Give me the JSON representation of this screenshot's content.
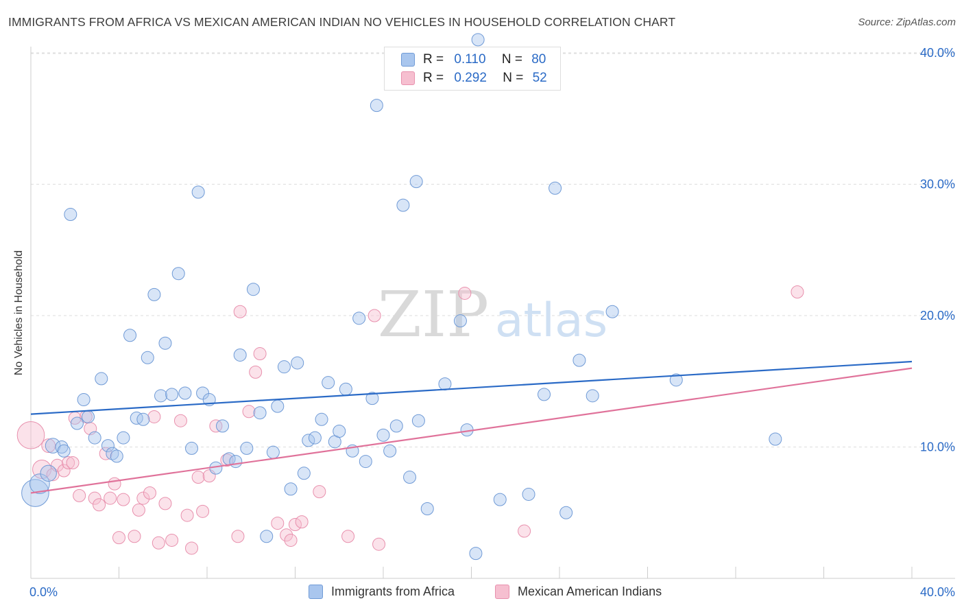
{
  "title": "IMMIGRANTS FROM AFRICA VS MEXICAN AMERICAN INDIAN NO VEHICLES IN HOUSEHOLD CORRELATION CHART",
  "source": "Source: ZipAtlas.com",
  "watermark": {
    "zip": "ZIP",
    "atlas": "atlas"
  },
  "colors": {
    "blue_fill": "#a9c6ee",
    "blue_stroke": "#6f9ad6",
    "blue_line": "#2a6ac6",
    "pink_fill": "#f6bfd0",
    "pink_stroke": "#e890ad",
    "pink_line": "#e0729a",
    "axis_label": "#2a6ac6",
    "grid": "#dddddd"
  },
  "legend_top": [
    {
      "r_label": "R =",
      "r_value": "0.110",
      "n_label": "N =",
      "n_value": "80",
      "color": "blue"
    },
    {
      "r_label": "R =",
      "r_value": "0.292",
      "n_label": "N =",
      "n_value": "52",
      "color": "pink"
    }
  ],
  "legend_bottom": [
    "Immigrants from Africa",
    "Mexican American Indians"
  ],
  "chart_data": {
    "type": "scatter",
    "xlabel": "",
    "ylabel": "No Vehicles in Household",
    "xlim": [
      0,
      40
    ],
    "ylim": [
      0,
      40
    ],
    "x_tick_labels": [
      "0.0%",
      "40.0%"
    ],
    "y_tick_labels": [
      "10.0%",
      "20.0%",
      "30.0%",
      "40.0%"
    ],
    "y_ticks": [
      10,
      20,
      30,
      40
    ],
    "x_minor_ticks": [
      0,
      4,
      8,
      12,
      16,
      20,
      24,
      28,
      32,
      36,
      40
    ],
    "grid": true,
    "series": [
      {
        "name": "Immigrants from Africa",
        "color": "blue",
        "trend": {
          "x0": 0,
          "y0": 12.5,
          "x1": 40,
          "y1": 16.5
        },
        "points": [
          [
            0.2,
            6.5,
            2.2
          ],
          [
            0.4,
            7.2,
            1.6
          ],
          [
            0.8,
            8.0,
            1.3
          ],
          [
            1.0,
            10.1,
            1.2
          ],
          [
            1.4,
            10.0,
            1.0
          ],
          [
            1.5,
            9.7,
            1.0
          ],
          [
            1.8,
            27.7,
            1.0
          ],
          [
            2.1,
            11.8,
            1.0
          ],
          [
            2.4,
            13.6,
            1.0
          ],
          [
            2.6,
            12.3,
            1.0
          ],
          [
            2.9,
            10.7,
            1.0
          ],
          [
            3.2,
            15.2,
            1.0
          ],
          [
            3.5,
            10.1,
            1.0
          ],
          [
            3.7,
            9.5,
            1.0
          ],
          [
            3.9,
            9.3,
            1.0
          ],
          [
            4.2,
            10.7,
            1.0
          ],
          [
            4.5,
            18.5,
            1.0
          ],
          [
            4.8,
            12.2,
            1.0
          ],
          [
            5.1,
            12.1,
            1.0
          ],
          [
            5.3,
            16.8,
            1.0
          ],
          [
            5.6,
            21.6,
            1.0
          ],
          [
            5.9,
            13.9,
            1.0
          ],
          [
            6.1,
            17.9,
            1.0
          ],
          [
            6.4,
            14.0,
            1.0
          ],
          [
            6.7,
            23.2,
            1.0
          ],
          [
            7.0,
            14.1,
            1.0
          ],
          [
            7.3,
            9.9,
            1.0
          ],
          [
            7.6,
            29.4,
            1.0
          ],
          [
            7.8,
            14.1,
            1.0
          ],
          [
            8.1,
            13.6,
            1.0
          ],
          [
            8.4,
            8.4,
            1.0
          ],
          [
            8.7,
            11.6,
            1.0
          ],
          [
            9.0,
            9.1,
            1.0
          ],
          [
            9.3,
            8.9,
            1.0
          ],
          [
            9.5,
            17.0,
            1.0
          ],
          [
            9.8,
            9.9,
            1.0
          ],
          [
            10.1,
            22.0,
            1.0
          ],
          [
            10.4,
            12.6,
            1.0
          ],
          [
            10.7,
            3.2,
            1.0
          ],
          [
            11.0,
            9.6,
            1.0
          ],
          [
            11.2,
            13.1,
            1.0
          ],
          [
            11.5,
            16.1,
            1.0
          ],
          [
            11.8,
            6.8,
            1.0
          ],
          [
            12.1,
            16.4,
            1.0
          ],
          [
            12.4,
            8.0,
            1.0
          ],
          [
            12.6,
            10.5,
            1.0
          ],
          [
            12.9,
            10.7,
            1.0
          ],
          [
            13.2,
            12.1,
            1.0
          ],
          [
            13.5,
            14.9,
            1.0
          ],
          [
            13.8,
            10.4,
            1.0
          ],
          [
            14.0,
            11.2,
            1.0
          ],
          [
            14.3,
            14.4,
            1.0
          ],
          [
            14.6,
            9.7,
            1.0
          ],
          [
            14.9,
            19.8,
            1.0
          ],
          [
            15.2,
            8.9,
            1.0
          ],
          [
            15.5,
            13.7,
            1.0
          ],
          [
            15.7,
            36.0,
            1.0
          ],
          [
            16.0,
            10.9,
            1.0
          ],
          [
            16.3,
            9.7,
            1.0
          ],
          [
            16.6,
            11.6,
            1.0
          ],
          [
            16.9,
            28.4,
            1.0
          ],
          [
            17.2,
            7.7,
            1.0
          ],
          [
            17.5,
            30.2,
            1.0
          ],
          [
            17.6,
            12.0,
            1.0
          ],
          [
            18.0,
            5.3,
            1.0
          ],
          [
            18.8,
            14.8,
            1.0
          ],
          [
            19.5,
            19.6,
            1.0
          ],
          [
            19.8,
            11.3,
            1.0
          ],
          [
            20.2,
            1.9,
            1.0
          ],
          [
            21.3,
            6.0,
            1.0
          ],
          [
            22.6,
            6.4,
            1.0
          ],
          [
            23.3,
            14.0,
            1.0
          ],
          [
            23.8,
            29.7,
            1.0
          ],
          [
            24.3,
            5.0,
            1.0
          ],
          [
            24.9,
            16.6,
            1.0
          ],
          [
            25.5,
            13.9,
            1.0
          ],
          [
            26.4,
            20.3,
            1.0
          ],
          [
            29.3,
            15.1,
            1.0
          ],
          [
            33.8,
            10.6,
            1.0
          ],
          [
            20.3,
            41.0,
            1.0
          ]
        ]
      },
      {
        "name": "Mexican American Indians",
        "color": "pink",
        "trend": {
          "x0": 0,
          "y0": 6.5,
          "x1": 40,
          "y1": 16.0
        },
        "points": [
          [
            0.0,
            10.9,
            2.2
          ],
          [
            0.5,
            8.3,
            1.5
          ],
          [
            0.8,
            10.1,
            1.1
          ],
          [
            1.0,
            7.9,
            1.0
          ],
          [
            1.2,
            8.6,
            1.0
          ],
          [
            1.5,
            8.2,
            1.0
          ],
          [
            1.7,
            8.8,
            1.0
          ],
          [
            1.9,
            8.8,
            1.0
          ],
          [
            2.2,
            6.3,
            1.0
          ],
          [
            2.5,
            12.3,
            1.0
          ],
          [
            2.7,
            11.4,
            1.0
          ],
          [
            2.9,
            6.1,
            1.0
          ],
          [
            3.1,
            5.6,
            1.0
          ],
          [
            3.4,
            9.5,
            1.0
          ],
          [
            3.6,
            6.1,
            1.0
          ],
          [
            3.8,
            7.2,
            1.0
          ],
          [
            4.0,
            3.1,
            1.0
          ],
          [
            4.2,
            6.0,
            1.0
          ],
          [
            4.7,
            3.2,
            1.0
          ],
          [
            4.9,
            5.2,
            1.0
          ],
          [
            5.1,
            6.1,
            1.0
          ],
          [
            5.4,
            6.5,
            1.0
          ],
          [
            5.6,
            12.3,
            1.0
          ],
          [
            5.8,
            2.7,
            1.0
          ],
          [
            6.1,
            5.7,
            1.0
          ],
          [
            6.4,
            2.9,
            1.0
          ],
          [
            6.8,
            12.0,
            1.0
          ],
          [
            7.1,
            4.8,
            1.0
          ],
          [
            7.3,
            2.3,
            1.0
          ],
          [
            7.6,
            7.7,
            1.0
          ],
          [
            7.8,
            5.1,
            1.0
          ],
          [
            8.1,
            7.8,
            1.0
          ],
          [
            8.4,
            11.6,
            1.0
          ],
          [
            8.9,
            9.0,
            1.0
          ],
          [
            9.4,
            3.2,
            1.0
          ],
          [
            9.5,
            20.3,
            1.0
          ],
          [
            9.9,
            12.7,
            1.0
          ],
          [
            10.2,
            15.7,
            1.0
          ],
          [
            10.4,
            17.1,
            1.0
          ],
          [
            11.2,
            4.2,
            1.0
          ],
          [
            11.6,
            3.3,
            1.0
          ],
          [
            11.8,
            2.9,
            1.0
          ],
          [
            12.0,
            4.1,
            1.0
          ],
          [
            12.3,
            4.3,
            1.0
          ],
          [
            13.1,
            6.6,
            1.0
          ],
          [
            14.4,
            3.2,
            1.0
          ],
          [
            15.6,
            20.0,
            1.0
          ],
          [
            15.8,
            2.6,
            1.0
          ],
          [
            19.7,
            21.7,
            1.0
          ],
          [
            22.4,
            3.6,
            1.0
          ],
          [
            34.8,
            21.8,
            1.0
          ],
          [
            2.0,
            12.2,
            1.0
          ]
        ]
      }
    ]
  }
}
